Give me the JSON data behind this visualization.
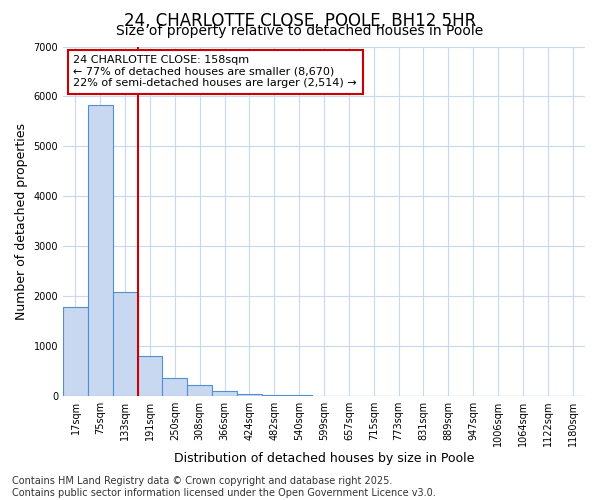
{
  "title": "24, CHARLOTTE CLOSE, POOLE, BH12 5HR",
  "subtitle": "Size of property relative to detached houses in Poole",
  "xlabel": "Distribution of detached houses by size in Poole",
  "ylabel": "Number of detached properties",
  "categories": [
    "17sqm",
    "75sqm",
    "133sqm",
    "191sqm",
    "250sqm",
    "308sqm",
    "366sqm",
    "424sqm",
    "482sqm",
    "540sqm",
    "599sqm",
    "657sqm",
    "715sqm",
    "773sqm",
    "831sqm",
    "889sqm",
    "947sqm",
    "1006sqm",
    "1064sqm",
    "1122sqm",
    "1180sqm"
  ],
  "values": [
    1780,
    5820,
    2080,
    800,
    360,
    220,
    100,
    50,
    30,
    20,
    10,
    5,
    3,
    2,
    1,
    1,
    0,
    0,
    0,
    0,
    0
  ],
  "bar_color": "#c8d8f0",
  "bar_edge_color": "#5090d0",
  "background_color": "#ffffff",
  "grid_color": "#c8d8f0",
  "annotation_text": "24 CHARLOTTE CLOSE: 158sqm\n← 77% of detached houses are smaller (8,670)\n22% of semi-detached houses are larger (2,514) →",
  "vline_color": "#cc0000",
  "annotation_box_color": "#cc0000",
  "ylim": [
    0,
    7000
  ],
  "footer": "Contains HM Land Registry data © Crown copyright and database right 2025.\nContains public sector information licensed under the Open Government Licence v3.0.",
  "title_fontsize": 12,
  "subtitle_fontsize": 10,
  "axis_label_fontsize": 9,
  "tick_fontsize": 7,
  "annotation_fontsize": 8,
  "footer_fontsize": 7
}
